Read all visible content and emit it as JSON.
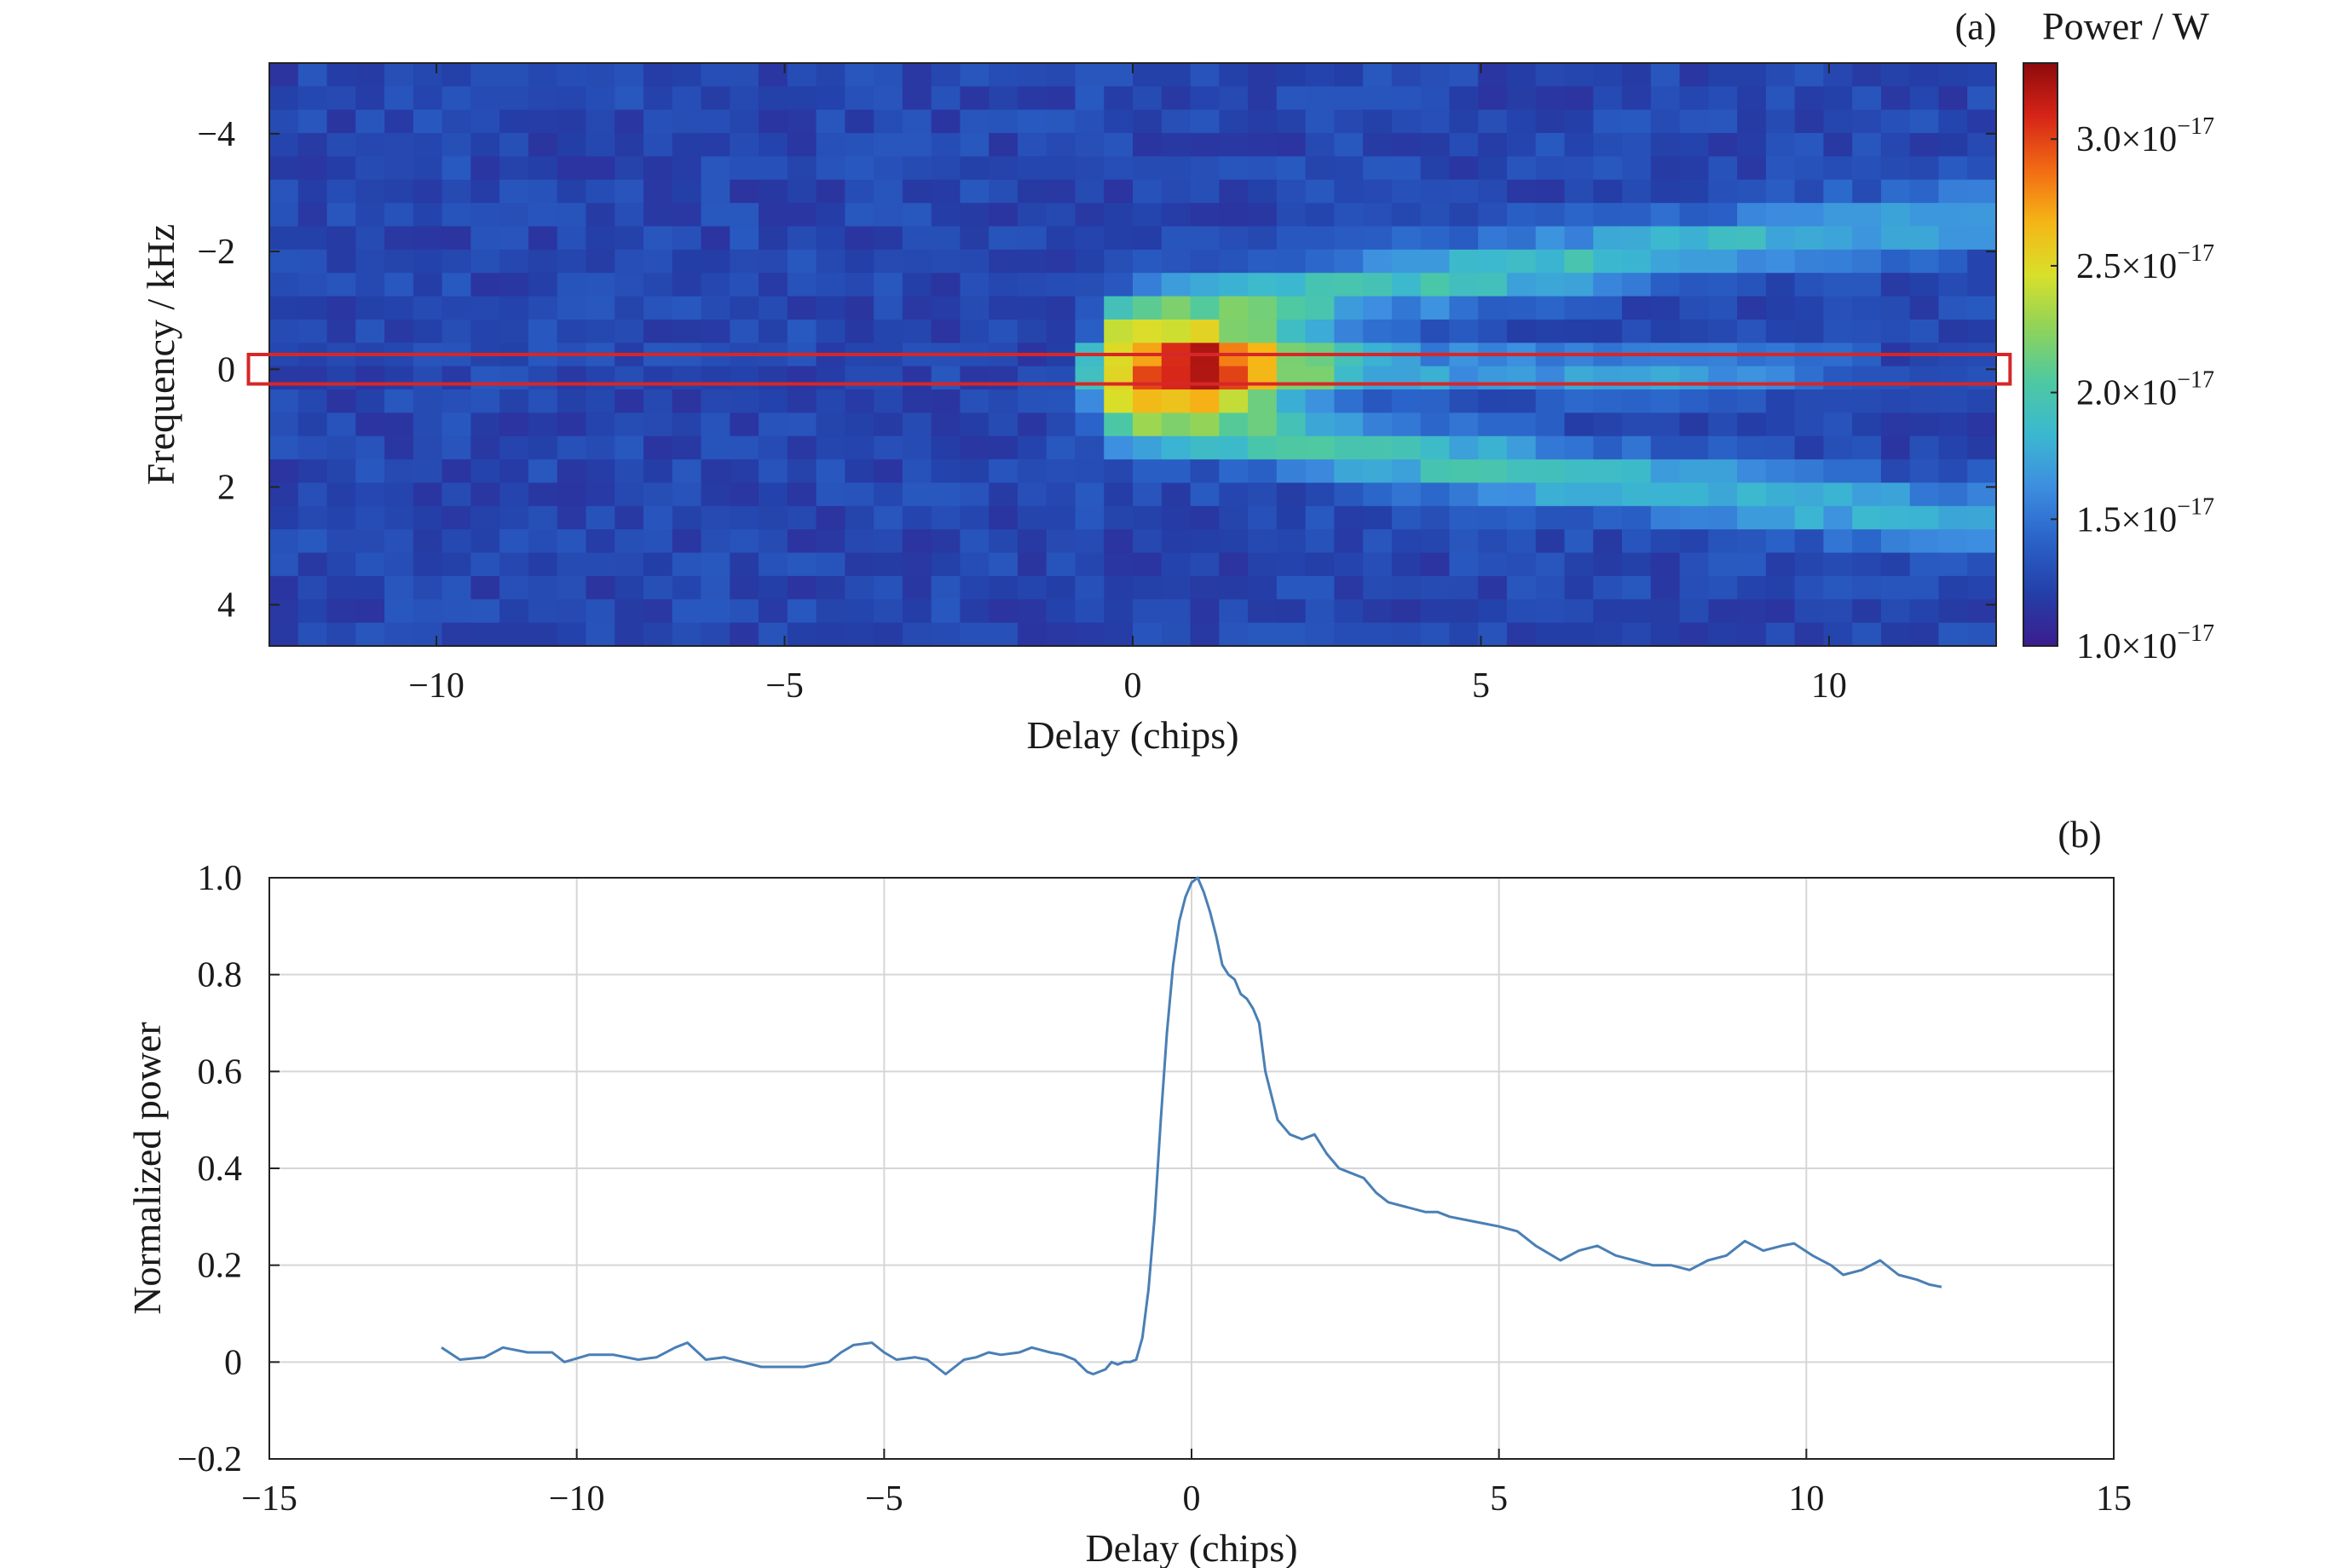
{
  "chart_data": [
    {
      "type": "heatmap",
      "panel_label": "(a)",
      "xlabel": "Delay (chips)",
      "ylabel": "Frequency / kHz",
      "xlim": [
        -12.4,
        12.4
      ],
      "ylim": [
        -5.2,
        4.7
      ],
      "y_inverted": true,
      "xticks": [
        -10,
        -5,
        0,
        5,
        10
      ],
      "xtick_labels": [
        "−10",
        "−5",
        "0",
        "5",
        "10"
      ],
      "yticks": [
        -4,
        -2,
        0,
        2,
        4
      ],
      "ytick_labels": [
        "−4",
        "−2",
        "0",
        "2",
        "4"
      ],
      "grid": {
        "x_cells": 60,
        "y_cells": 25
      },
      "colorbar": {
        "title": "Power / W",
        "min": 1e-17,
        "max": 3.3e-17,
        "ticks": [
          1e-17,
          1.5e-17,
          2e-17,
          2.5e-17,
          3e-17
        ],
        "tick_mantissas": [
          "1.0×10",
          "1.5×10",
          "2.0×10",
          "2.5×10",
          "3.0×10"
        ],
        "tick_exponent": "−17",
        "colormap": [
          "#3b1d8f",
          "#243fa8",
          "#2a63c9",
          "#3d8ee0",
          "#3bb8d0",
          "#4ec9a0",
          "#8fd35a",
          "#d8e02a",
          "#f5b516",
          "#f26a14",
          "#d62418",
          "#8e0a0c"
        ]
      },
      "background_level": 1.25e-17,
      "features": [
        {
          "name": "main peak",
          "delay_start": -0.1,
          "delay_end": 2.7,
          "frequency": 0,
          "peak_value": 3.3e-17
        },
        {
          "name": "upper branch",
          "delay_start": 0,
          "delay_end": 12.3,
          "frequency_start": -0.8,
          "frequency_end": -2.6,
          "value": 2.05e-17
        },
        {
          "name": "lower branch",
          "delay_start": 0,
          "delay_end": 12.3,
          "frequency_start": 0.8,
          "frequency_end": 2.6,
          "value": 2.05e-17
        },
        {
          "name": "zero-frequency tail",
          "delay_start": 2.5,
          "delay_end": 9,
          "frequency": 0,
          "value": 1.85e-17
        }
      ],
      "highlight_box": {
        "frequency_min": -0.25,
        "frequency_max": 0.25,
        "delay_min": -12.7,
        "delay_max": 12.6,
        "color": "#d62728"
      }
    },
    {
      "type": "line",
      "panel_label": "(b)",
      "xlabel": "Delay (chips)",
      "ylabel": "Normalized power",
      "xlim": [
        -15,
        15
      ],
      "ylim": [
        -0.2,
        1.0
      ],
      "xticks": [
        -15,
        -10,
        -5,
        0,
        5,
        10,
        15
      ],
      "xtick_labels": [
        "−15",
        "−10",
        "−5",
        "0",
        "5",
        "10",
        "15"
      ],
      "yticks": [
        -0.2,
        0,
        0.2,
        0.4,
        0.6,
        0.8,
        1.0
      ],
      "ytick_labels": [
        "−0.2",
        "0",
        "0.2",
        "0.4",
        "0.6",
        "0.8",
        "1.0"
      ],
      "grid": true,
      "line_color": "#4a7fb5",
      "series": [
        {
          "name": "Normalized power",
          "x": [
            -12.2,
            -11.9,
            -11.5,
            -11.2,
            -10.8,
            -10.4,
            -10.2,
            -9.8,
            -9.4,
            -9.0,
            -8.7,
            -8.4,
            -8.2,
            -7.9,
            -7.6,
            -7.3,
            -7.0,
            -6.7,
            -6.3,
            -5.9,
            -5.7,
            -5.5,
            -5.2,
            -5.0,
            -4.8,
            -4.5,
            -4.3,
            -4.0,
            -3.7,
            -3.5,
            -3.3,
            -3.1,
            -2.8,
            -2.6,
            -2.3,
            -2.1,
            -1.9,
            -1.7,
            -1.6,
            -1.4,
            -1.3,
            -1.2,
            -1.1,
            -1.0,
            -0.9,
            -0.8,
            -0.7,
            -0.6,
            -0.5,
            -0.4,
            -0.3,
            -0.2,
            -0.1,
            0.0,
            0.1,
            0.2,
            0.3,
            0.4,
            0.5,
            0.6,
            0.7,
            0.8,
            0.9,
            1.0,
            1.1,
            1.2,
            1.4,
            1.6,
            1.8,
            2.0,
            2.2,
            2.4,
            2.6,
            2.8,
            3.0,
            3.2,
            3.5,
            3.8,
            4.0,
            4.2,
            4.6,
            5.0,
            5.3,
            5.6,
            6.0,
            6.3,
            6.6,
            6.9,
            7.2,
            7.5,
            7.8,
            8.1,
            8.4,
            8.7,
            9.0,
            9.3,
            9.6,
            9.8,
            10.1,
            10.4,
            10.6,
            10.9,
            11.2,
            11.5,
            11.8,
            12.0,
            12.2
          ],
          "y": [
            0.03,
            0.005,
            0.01,
            0.03,
            0.02,
            0.02,
            0.0,
            0.015,
            0.015,
            0.005,
            0.01,
            0.03,
            0.04,
            0.005,
            0.01,
            0.0,
            -0.01,
            -0.01,
            -0.01,
            0.0,
            0.02,
            0.035,
            0.04,
            0.02,
            0.005,
            0.01,
            0.005,
            -0.025,
            0.005,
            0.01,
            0.02,
            0.015,
            0.02,
            0.03,
            0.02,
            0.015,
            0.005,
            -0.02,
            -0.025,
            -0.015,
            0.0,
            -0.005,
            0.0,
            0.0,
            0.005,
            0.05,
            0.15,
            0.3,
            0.5,
            0.68,
            0.82,
            0.91,
            0.96,
            0.99,
            1.0,
            0.97,
            0.93,
            0.88,
            0.82,
            0.8,
            0.79,
            0.76,
            0.75,
            0.73,
            0.7,
            0.6,
            0.5,
            0.47,
            0.46,
            0.47,
            0.43,
            0.4,
            0.39,
            0.38,
            0.35,
            0.33,
            0.32,
            0.31,
            0.31,
            0.3,
            0.29,
            0.28,
            0.27,
            0.24,
            0.21,
            0.23,
            0.24,
            0.22,
            0.21,
            0.2,
            0.2,
            0.19,
            0.21,
            0.22,
            0.25,
            0.23,
            0.24,
            0.245,
            0.22,
            0.2,
            0.18,
            0.19,
            0.21,
            0.18,
            0.17,
            0.16,
            0.155
          ]
        }
      ]
    }
  ]
}
